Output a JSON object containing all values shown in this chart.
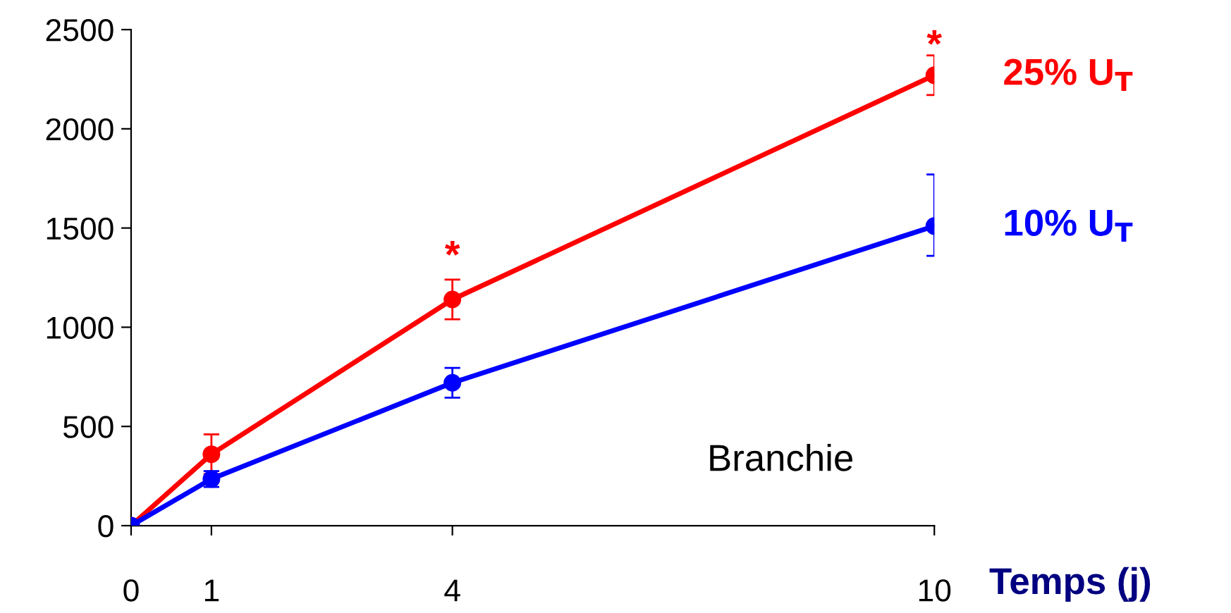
{
  "chart_data": {
    "type": "line",
    "x": [
      0,
      1,
      4,
      10
    ],
    "xlim": [
      0,
      10
    ],
    "xticks": [
      0,
      1,
      4,
      10
    ],
    "ylim": [
      0,
      2500
    ],
    "yticks": [
      0,
      500,
      1000,
      1500,
      2000,
      2500
    ],
    "xlabel": "Temps (j)",
    "marker": "circle",
    "line_style": "solid",
    "grid": false,
    "legend": false,
    "series": [
      {
        "name": "25% U$_{T}$",
        "color": "#ff0000",
        "values": [
          0,
          360,
          1140,
          2270
        ],
        "errors": [
          null,
          100,
          100,
          100
        ]
      },
      {
        "name": "10% U$_{T}$",
        "color": "#0000ff",
        "values": [
          0,
          235,
          720,
          1510
        ],
        "errors": [
          null,
          40,
          75,
          [
            1360,
            1770
          ]
        ]
      }
    ],
    "annotations": [
      "*",
      "*",
      "Branchie"
    ]
  }
}
